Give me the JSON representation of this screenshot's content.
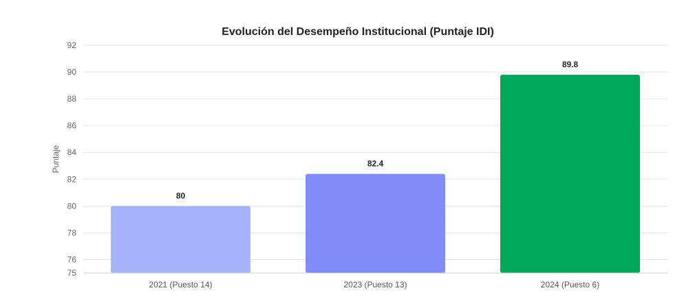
{
  "chart_data": {
    "type": "bar",
    "title": "Evolución del Desempeño Institucional (Puntaje IDI)",
    "xlabel": "",
    "ylabel": "Puntaje",
    "categories": [
      "2021 (Puesto 14)",
      "2023 (Puesto 13)",
      "2024 (Puesto 6)"
    ],
    "values": [
      80,
      82.4,
      89.8
    ],
    "value_labels": [
      "80",
      "82.4",
      "89.8"
    ],
    "colors": [
      "#a5b4fc",
      "#818cf8",
      "#00a85a"
    ],
    "ylim": [
      75,
      92
    ],
    "y_ticks": [
      75,
      76,
      78,
      80,
      82,
      84,
      86,
      88,
      90,
      92
    ],
    "y_tick_labels": [
      "75",
      "76",
      "78",
      "80",
      "82",
      "84",
      "86",
      "88",
      "90",
      "92"
    ],
    "grid": true,
    "legend": false
  }
}
